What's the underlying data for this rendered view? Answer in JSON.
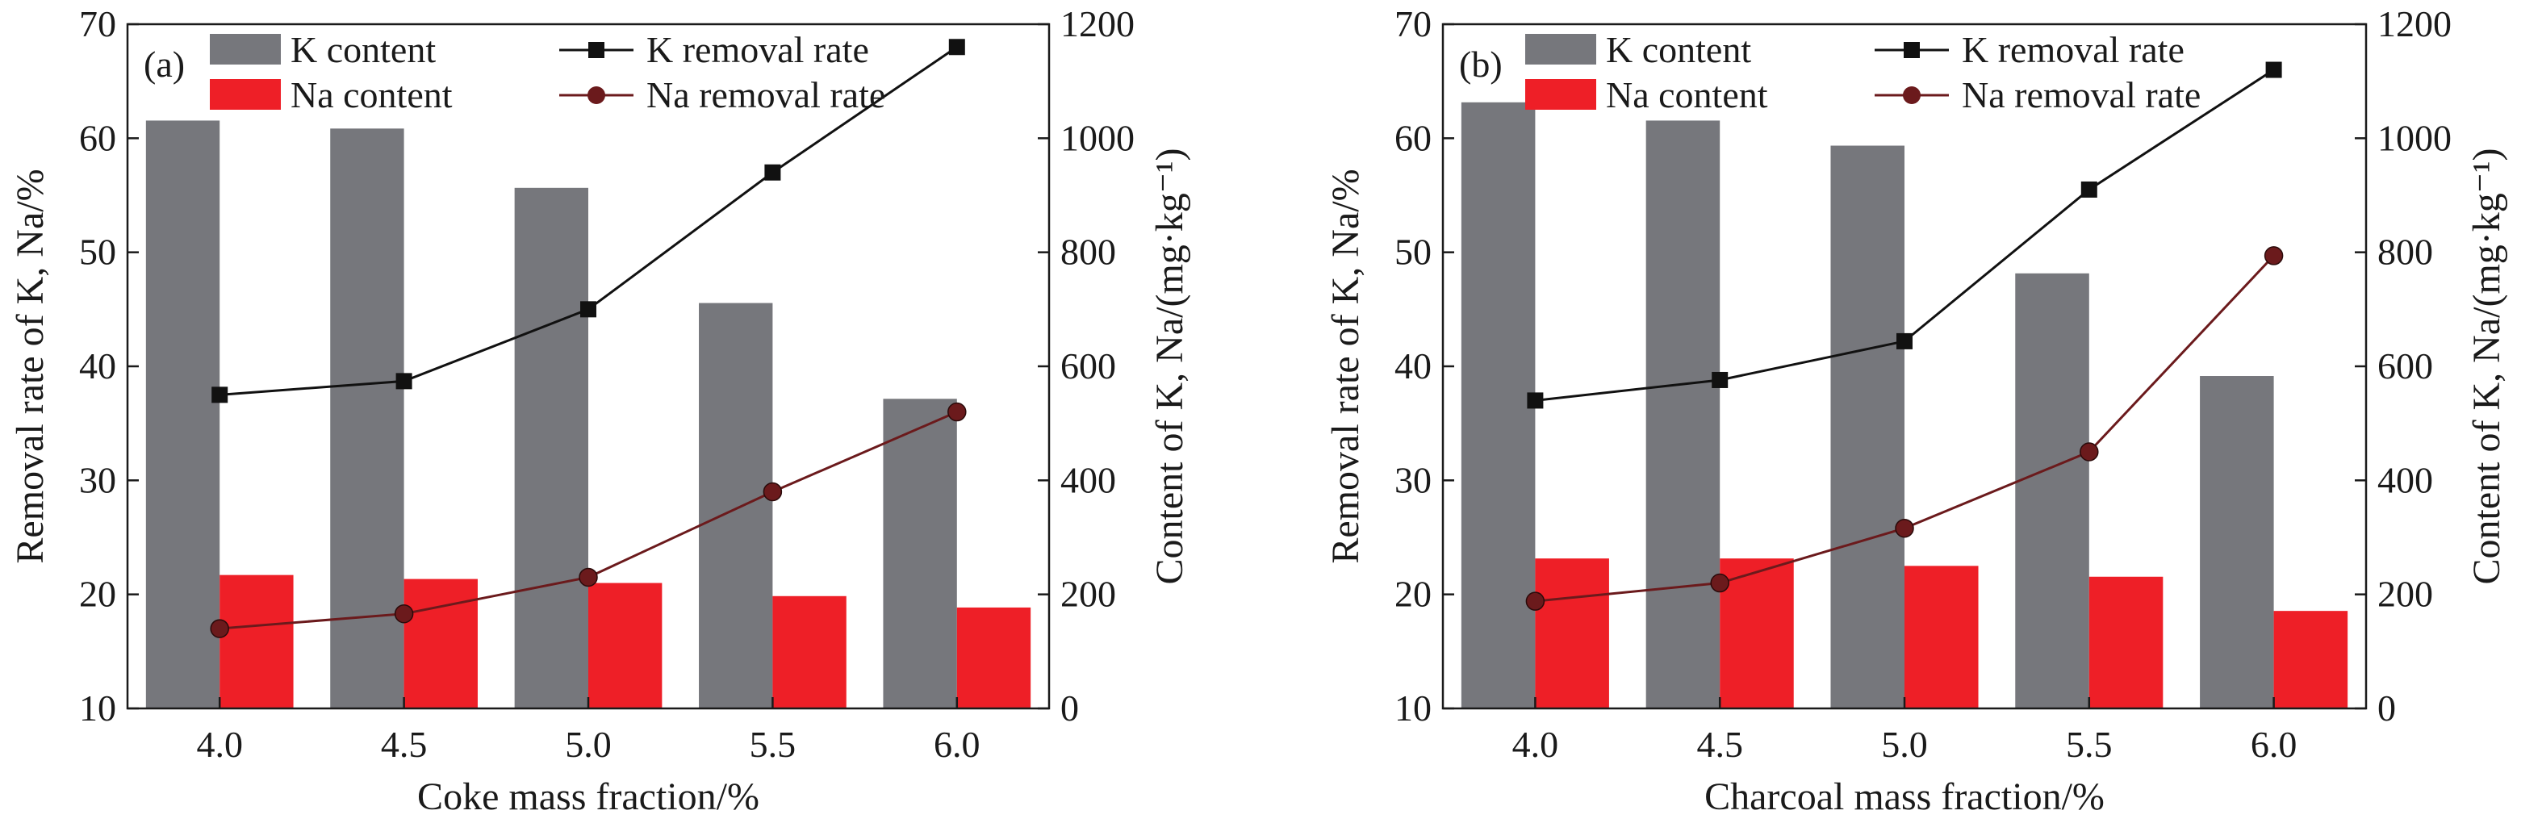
{
  "chart_data": [
    {
      "panel_label": "(a)",
      "type": "bar+line",
      "xlabel": "Coke mass fraction/%",
      "ylabel_left": "Removal rate of K, Na/%",
      "ylabel_right": "Content of K, Na/(mg·kg⁻¹)",
      "categories": [
        "4.0",
        "4.5",
        "5.0",
        "5.5",
        "6.0"
      ],
      "ylim_left": [
        10,
        70
      ],
      "yticks_left": [
        "10",
        "20",
        "30",
        "40",
        "50",
        "60",
        "70"
      ],
      "ylim_right": [
        0,
        1200
      ],
      "yticks_right": [
        "0",
        "200",
        "400",
        "600",
        "800",
        "1000",
        "1200"
      ],
      "bar_series": [
        {
          "name": "K content",
          "color": "#76777c",
          "values": [
            1031,
            1017,
            913,
            711,
            543
          ]
        },
        {
          "name": "Na content",
          "color": "#ee1f27",
          "values": [
            234,
            227,
            220,
            197,
            177
          ]
        }
      ],
      "line_series": [
        {
          "name": "K removal rate",
          "color": "#111111",
          "marker": "square",
          "values": [
            37.5,
            38.7,
            45.0,
            57.0,
            68.0
          ]
        },
        {
          "name": "Na removal rate",
          "color": "#6b1a1c",
          "marker": "circle",
          "values": [
            17.0,
            18.3,
            21.5,
            29.0,
            36.0
          ]
        }
      ],
      "legend": "top, inside"
    },
    {
      "panel_label": "(b)",
      "type": "bar+line",
      "xlabel": "Charcoal mass fraction/%",
      "ylabel_left": "Removal rate of K, Na/%",
      "ylabel_right": "Content of K, Na/(mg·kg⁻¹)",
      "categories": [
        "4.0",
        "4.5",
        "5.0",
        "5.5",
        "6.0"
      ],
      "ylim_left": [
        10,
        70
      ],
      "yticks_left": [
        "10",
        "20",
        "30",
        "40",
        "50",
        "60",
        "70"
      ],
      "ylim_right": [
        0,
        1200
      ],
      "yticks_right": [
        "0",
        "200",
        "400",
        "600",
        "800",
        "1000",
        "1200"
      ],
      "bar_series": [
        {
          "name": "K content",
          "color": "#76777c",
          "values": [
            1063,
            1031,
            987,
            763,
            583
          ]
        },
        {
          "name": "Na content",
          "color": "#ee1f27",
          "values": [
            263,
            263,
            250,
            231,
            171
          ]
        }
      ],
      "line_series": [
        {
          "name": "K removal rate",
          "color": "#111111",
          "marker": "square",
          "values": [
            37.0,
            38.8,
            42.2,
            55.5,
            66.0
          ]
        },
        {
          "name": "Na removal rate",
          "color": "#6b1a1c",
          "marker": "circle",
          "values": [
            19.4,
            21.0,
            25.8,
            32.5,
            49.7
          ]
        }
      ],
      "legend": "top, inside"
    }
  ]
}
